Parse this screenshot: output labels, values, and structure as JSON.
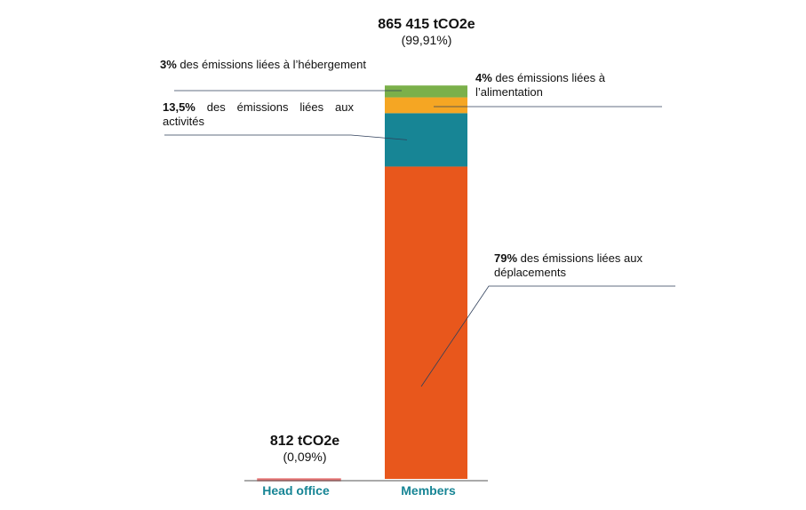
{
  "chart_data": {
    "type": "stacked-bar",
    "categories": [
      "Head office",
      "Members"
    ],
    "totals": {
      "values": [
        812,
        865415
      ],
      "value_labels": [
        "812 tCO2e",
        "865 415 tCO2e"
      ]
    },
    "shares": {
      "values": [
        0.09,
        99.91
      ],
      "value_labels": [
        "(0,09%)",
        "(99,91%)"
      ]
    },
    "head_office_color": "#e57373",
    "category_color": "#178595",
    "segments": [
      {
        "share": 79,
        "share_label": "79%",
        "text": "des émissions liées aux déplacements",
        "color": "#e8571c"
      },
      {
        "share": 13.5,
        "share_label": "13,5%",
        "text": "des émissions liées aux activités",
        "color": "#178595"
      },
      {
        "share": 4,
        "share_label": "4%",
        "text": "des émissions liées à l’alimentation",
        "color": "#f5a623"
      },
      {
        "share": 3,
        "share_label": "3%",
        "text": "des émissions liées à l’hébergement",
        "color": "#7bb04a"
      }
    ]
  }
}
